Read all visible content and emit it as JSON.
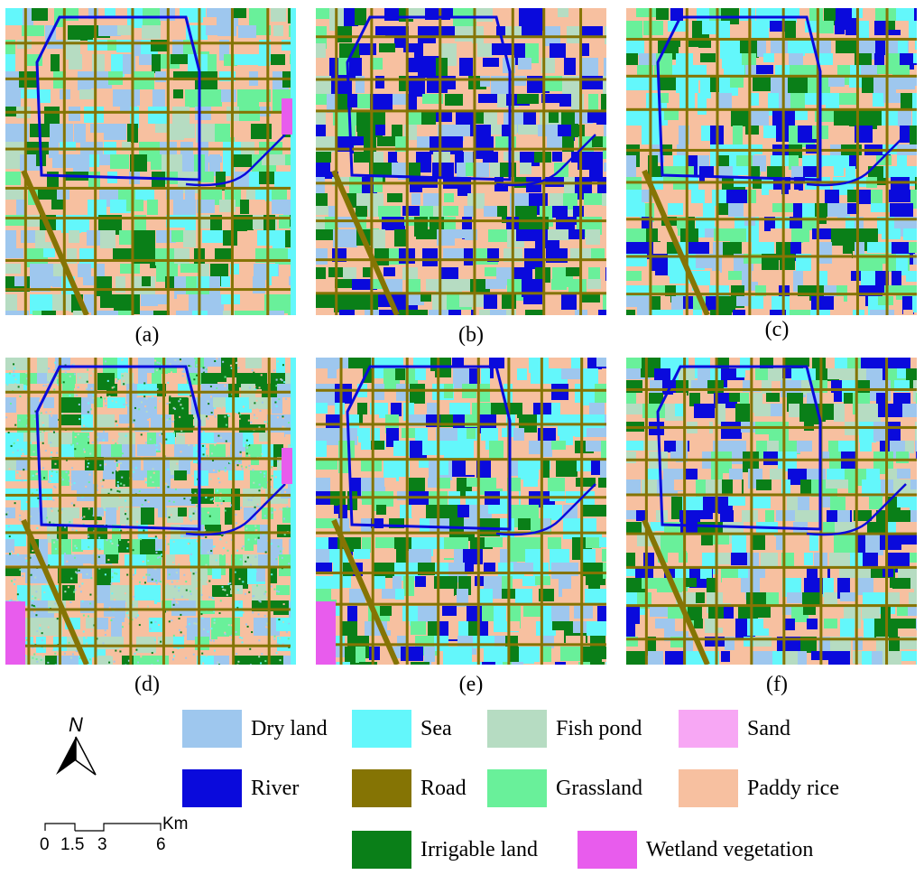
{
  "panels": [
    {
      "id": "a",
      "caption": "(a)"
    },
    {
      "id": "b",
      "caption": "(b)"
    },
    {
      "id": "c",
      "caption": "(c)"
    },
    {
      "id": "d",
      "caption": "(d)"
    },
    {
      "id": "e",
      "caption": "(e)"
    },
    {
      "id": "f",
      "caption": "(f)"
    }
  ],
  "legend": [
    {
      "label": "Dry land",
      "color": "#9ec7ee"
    },
    {
      "label": "Sea",
      "color": "#63f7fb"
    },
    {
      "label": "Fish pond",
      "color": "#b6dcc2"
    },
    {
      "label": "Sand",
      "color": "#f7a7f4"
    },
    {
      "label": "River",
      "color": "#0a0adc"
    },
    {
      "label": "Road",
      "color": "#857404"
    },
    {
      "label": "Grassland",
      "color": "#69f09a"
    },
    {
      "label": "Paddy rice",
      "color": "#f7c0a0"
    },
    {
      "label": "Irrigable land",
      "color": "#0a7f18"
    },
    {
      "label": "Wetland vegetation",
      "color": "#e85ced"
    }
  ],
  "north_arrow": {
    "label": "N"
  },
  "scale_bar": {
    "unit": "Km",
    "ticks": [
      "0",
      "1.5",
      "3",
      "6"
    ]
  }
}
